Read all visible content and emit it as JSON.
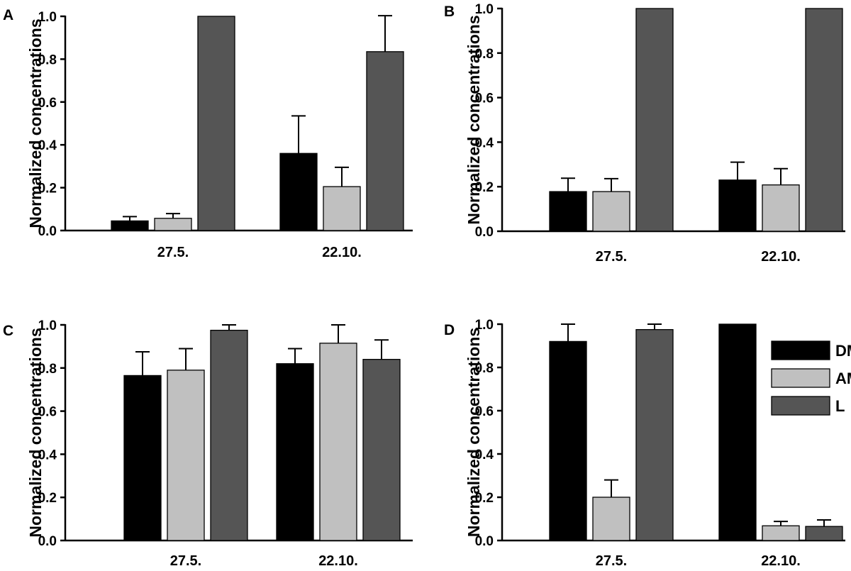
{
  "colors": {
    "DM": "#000000",
    "AM": "#c0c0c0",
    "L": "#555555",
    "axis": "#000000"
  },
  "legend": [
    {
      "key": "DM",
      "label": "DM"
    },
    {
      "key": "AM",
      "label": "AM"
    },
    {
      "key": "L",
      "label": "L"
    }
  ],
  "chart_data": [
    {
      "panel": "A",
      "type": "bar",
      "ylabel": "Normalized concentrations",
      "ylim": [
        0,
        1.0
      ],
      "yticks": [
        "0.0",
        "0.2",
        "0.4",
        "0.6",
        "0.8",
        "1.0"
      ],
      "categories": [
        "27.5.",
        "22.10."
      ],
      "series": [
        {
          "name": "DM",
          "values": [
            0.045,
            0.36
          ],
          "errors": [
            0.02,
            0.175
          ]
        },
        {
          "name": "AM",
          "values": [
            0.057,
            0.205
          ],
          "errors": [
            0.022,
            0.09
          ]
        },
        {
          "name": "L",
          "values": [
            1.0,
            0.835
          ],
          "errors": [
            0,
            0.168
          ]
        }
      ]
    },
    {
      "panel": "B",
      "type": "bar",
      "ylabel": "Normalized concentrations",
      "ylim": [
        0,
        1.0
      ],
      "yticks": [
        "0.0",
        "0.2",
        "0.4",
        "0.6",
        "0.8",
        "1.0"
      ],
      "categories": [
        "27.5.",
        "22.10."
      ],
      "series": [
        {
          "name": "DM",
          "values": [
            0.178,
            0.23
          ],
          "errors": [
            0.06,
            0.08
          ]
        },
        {
          "name": "AM",
          "values": [
            0.178,
            0.208
          ],
          "errors": [
            0.058,
            0.073
          ]
        },
        {
          "name": "L",
          "values": [
            1.0,
            1.0
          ],
          "errors": [
            0,
            0
          ]
        }
      ]
    },
    {
      "panel": "C",
      "type": "bar",
      "ylabel": "Normalized concentrations",
      "ylim": [
        0,
        1.0
      ],
      "yticks": [
        "0.0",
        "0.2",
        "0.4",
        "0.6",
        "0.8",
        "1.0"
      ],
      "categories": [
        "27.5.",
        "22.10."
      ],
      "series": [
        {
          "name": "DM",
          "values": [
            0.765,
            0.82
          ],
          "errors": [
            0.11,
            0.07
          ]
        },
        {
          "name": "AM",
          "values": [
            0.79,
            0.915
          ],
          "errors": [
            0.1,
            0.085
          ]
        },
        {
          "name": "L",
          "values": [
            0.975,
            0.84
          ],
          "errors": [
            0.025,
            0.09
          ]
        }
      ]
    },
    {
      "panel": "D",
      "type": "bar",
      "ylabel": "Normalized concentrations",
      "ylim": [
        0,
        1.0
      ],
      "yticks": [
        "0.0",
        "0.2",
        "0.4",
        "0.6",
        "0.8",
        "1.0"
      ],
      "categories": [
        "27.5.",
        "22.10."
      ],
      "series": [
        {
          "name": "DM",
          "values": [
            0.92,
            1.0
          ],
          "errors": [
            0.08,
            0
          ]
        },
        {
          "name": "AM",
          "values": [
            0.2,
            0.068
          ],
          "errors": [
            0.08,
            0.02
          ]
        },
        {
          "name": "L",
          "values": [
            0.975,
            0.065
          ],
          "errors": [
            0.025,
            0.03
          ]
        }
      ]
    }
  ]
}
